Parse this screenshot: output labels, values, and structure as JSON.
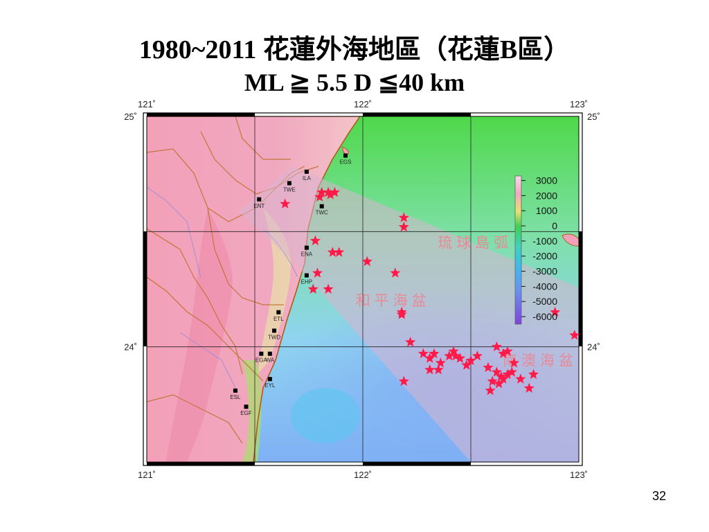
{
  "slide": {
    "title_line1": "1980~2011 花蓮外海地區（花蓮B區）",
    "title_line2": "ML ≧ 5.5  D ≦40 km",
    "page_number": "32"
  },
  "map": {
    "lon_ticks": [
      "121˚",
      "122˚",
      "123˚"
    ],
    "lat_ticks": [
      "25˚",
      "24˚"
    ],
    "lon_range": [
      121.0,
      123.0
    ],
    "lat_range": [
      23.5,
      25.0
    ],
    "region_labels": [
      {
        "text": "琉球島弧",
        "lon": 122.52,
        "lat": 24.43
      },
      {
        "text": "和平海盆",
        "lon": 122.14,
        "lat": 24.18
      },
      {
        "text": "南澳海盆",
        "lon": 122.82,
        "lat": 23.92
      }
    ],
    "stations": [
      {
        "name": "EGS",
        "lon": 121.92,
        "lat": 24.83
      },
      {
        "name": "ILA",
        "lon": 121.74,
        "lat": 24.76
      },
      {
        "name": "TWE",
        "lon": 121.66,
        "lat": 24.71
      },
      {
        "name": "ENT",
        "lon": 121.52,
        "lat": 24.64
      },
      {
        "name": "TWC",
        "lon": 121.81,
        "lat": 24.61
      },
      {
        "name": "ENA",
        "lon": 121.74,
        "lat": 24.43
      },
      {
        "name": "EHP",
        "lon": 121.74,
        "lat": 24.31
      },
      {
        "name": "ETL",
        "lon": 121.61,
        "lat": 24.15
      },
      {
        "name": "TWD",
        "lon": 121.59,
        "lat": 24.07
      },
      {
        "name": "EGA",
        "lon": 121.53,
        "lat": 23.97
      },
      {
        "name": "WA",
        "lon": 121.57,
        "lat": 23.97
      },
      {
        "name": "EYL",
        "lon": 121.57,
        "lat": 23.86
      },
      {
        "name": "ESL",
        "lon": 121.41,
        "lat": 23.81
      },
      {
        "name": "EGF",
        "lon": 121.46,
        "lat": 23.74
      }
    ],
    "colorbar": {
      "unit": "",
      "tick_labels": [
        "3000",
        "2000",
        "1000",
        "0",
        "-1000",
        "-2000",
        "-3000",
        "-4000",
        "-5000",
        "-6000"
      ],
      "range": [
        -6500,
        3300
      ]
    },
    "colors": {
      "epicenter": "#ff1a4a",
      "zone_fill": "#d8b4d0",
      "station": "#000000",
      "region_label": "#e88a98"
    },
    "epicenters": [
      {
        "lon": 121.81,
        "lat": 24.67
      },
      {
        "lon": 121.84,
        "lat": 24.67
      },
      {
        "lon": 121.87,
        "lat": 24.67
      },
      {
        "lon": 121.8,
        "lat": 24.65
      },
      {
        "lon": 121.85,
        "lat": 24.66
      },
      {
        "lon": 121.64,
        "lat": 24.62
      },
      {
        "lon": 122.19,
        "lat": 24.56
      },
      {
        "lon": 122.19,
        "lat": 24.52
      },
      {
        "lon": 121.78,
        "lat": 24.46
      },
      {
        "lon": 121.86,
        "lat": 24.41
      },
      {
        "lon": 121.89,
        "lat": 24.41
      },
      {
        "lon": 122.02,
        "lat": 24.37
      },
      {
        "lon": 121.79,
        "lat": 24.32
      },
      {
        "lon": 122.15,
        "lat": 24.32
      },
      {
        "lon": 121.77,
        "lat": 24.25
      },
      {
        "lon": 121.84,
        "lat": 24.25
      },
      {
        "lon": 122.18,
        "lat": 24.15
      },
      {
        "lon": 122.18,
        "lat": 24.14
      },
      {
        "lon": 122.89,
        "lat": 24.15
      },
      {
        "lon": 122.98,
        "lat": 24.05
      },
      {
        "lon": 122.22,
        "lat": 24.02
      },
      {
        "lon": 122.28,
        "lat": 23.97
      },
      {
        "lon": 122.31,
        "lat": 23.95
      },
      {
        "lon": 122.33,
        "lat": 23.97
      },
      {
        "lon": 122.36,
        "lat": 23.93
      },
      {
        "lon": 122.4,
        "lat": 23.96
      },
      {
        "lon": 122.42,
        "lat": 23.98
      },
      {
        "lon": 122.43,
        "lat": 23.96
      },
      {
        "lon": 122.45,
        "lat": 23.95
      },
      {
        "lon": 122.48,
        "lat": 23.92
      },
      {
        "lon": 122.5,
        "lat": 23.94
      },
      {
        "lon": 122.53,
        "lat": 23.96
      },
      {
        "lon": 122.31,
        "lat": 23.9
      },
      {
        "lon": 122.35,
        "lat": 23.9
      },
      {
        "lon": 122.58,
        "lat": 23.91
      },
      {
        "lon": 122.62,
        "lat": 24.0
      },
      {
        "lon": 122.65,
        "lat": 23.97
      },
      {
        "lon": 122.67,
        "lat": 23.98
      },
      {
        "lon": 122.7,
        "lat": 23.93
      },
      {
        "lon": 122.62,
        "lat": 23.89
      },
      {
        "lon": 122.64,
        "lat": 23.87
      },
      {
        "lon": 122.67,
        "lat": 23.88
      },
      {
        "lon": 122.69,
        "lat": 23.89
      },
      {
        "lon": 122.6,
        "lat": 23.85
      },
      {
        "lon": 122.63,
        "lat": 23.84
      },
      {
        "lon": 122.65,
        "lat": 23.86
      },
      {
        "lon": 122.73,
        "lat": 23.86
      },
      {
        "lon": 122.79,
        "lat": 23.88
      },
      {
        "lon": 122.59,
        "lat": 23.81
      },
      {
        "lon": 122.77,
        "lat": 23.82
      },
      {
        "lon": 122.19,
        "lat": 23.85
      }
    ]
  }
}
